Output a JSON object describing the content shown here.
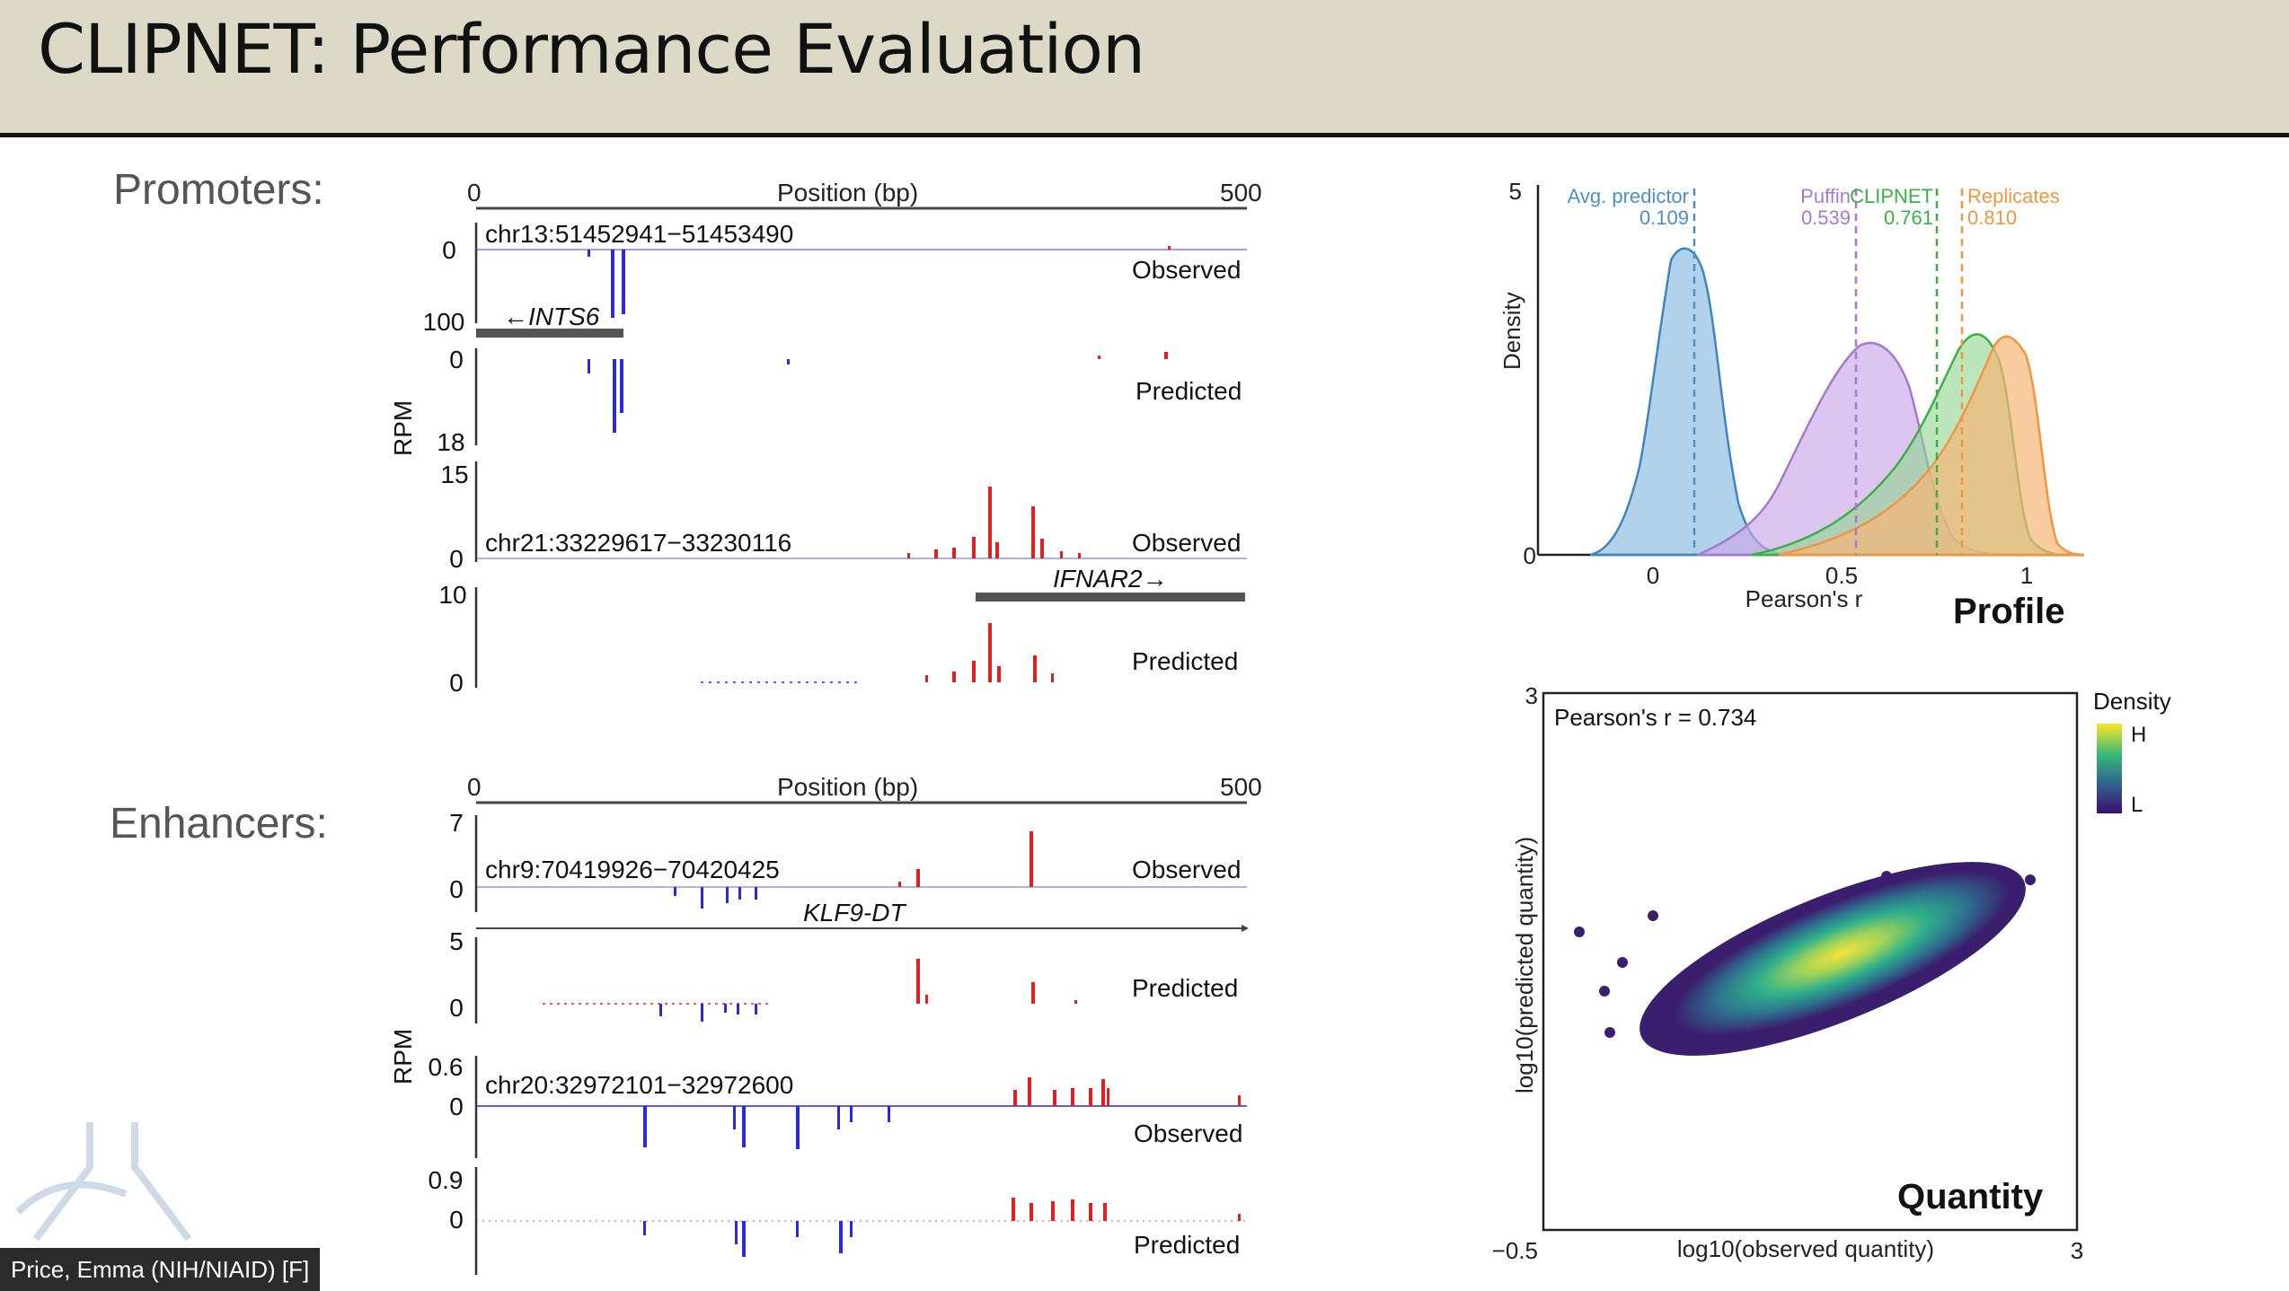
{
  "slide": {
    "title": "CLIPNET: Performance Evaluation"
  },
  "sections": {
    "promoters": "Promoters:",
    "enhancers": "Enhancers:"
  },
  "tracks": {
    "position_label": "Position (bp)",
    "pos_start": "0",
    "pos_end": "500",
    "rpm_label": "RPM",
    "promoters": {
      "region1": "chr13:51452941−51453490",
      "region1_observed": "Observed",
      "region1_predicted": "Predicted",
      "region1_obs_ticks": [
        "0",
        "100"
      ],
      "region1_pred_ticks": [
        "0",
        "18"
      ],
      "gene1": "←INTS6",
      "region2": "chr21:33229617−33230116",
      "region2_observed": "Observed",
      "region2_predicted": "Predicted",
      "region2_obs_ticks": [
        "15",
        "0"
      ],
      "region2_pred_ticks": [
        "10",
        "0"
      ],
      "gene2": "IFNAR2→"
    },
    "enhancers": {
      "region1": "chr9:70419926−70420425",
      "region1_observed": "Observed",
      "region1_predicted": "Predicted",
      "region1_obs_ticks": [
        "7",
        "0"
      ],
      "region1_pred_ticks": [
        "5",
        "0"
      ],
      "gene1": "KLF9-DT",
      "region2": "chr20:32972101−32972600",
      "region2_observed": "Observed",
      "region2_predicted": "Predicted",
      "region2_obs_ticks": [
        "0.6",
        "0"
      ],
      "region2_pred_ticks": [
        "0.9",
        "0"
      ]
    },
    "colors": {
      "plus": "#e02020",
      "minus": "#2a2ad8"
    }
  },
  "profile": {
    "label": "Profile",
    "ylabel": "Density",
    "xlabel": "Pearson's r",
    "y_ticks": [
      "5",
      "0"
    ],
    "x_ticks": [
      "0",
      "0.5",
      "1"
    ],
    "markers": [
      {
        "name": "Avg. predictor",
        "value": "0.109",
        "color": "#4a90c8"
      },
      {
        "name": "Puffin",
        "value": "0.539",
        "color": "#a678d0"
      },
      {
        "name": "CLIPNET",
        "value": "0.761",
        "color": "#3cb043"
      },
      {
        "name": "Replicates",
        "value": "0.810",
        "color": "#f09640"
      }
    ]
  },
  "quantity": {
    "label": "Quantity",
    "annotation": "Pearson's r = 0.734",
    "ylabel": "log10(predicted quantity)",
    "xlabel": "log10(observed quantity)",
    "x_ticks": [
      "−0.5",
      "3"
    ],
    "y_ticks": [
      "3"
    ],
    "legend_title": "Density",
    "legend_high": "H",
    "legend_low": "L"
  },
  "footer": {
    "name_tag": "Price, Emma (NIH/NIAID) [F]"
  }
}
